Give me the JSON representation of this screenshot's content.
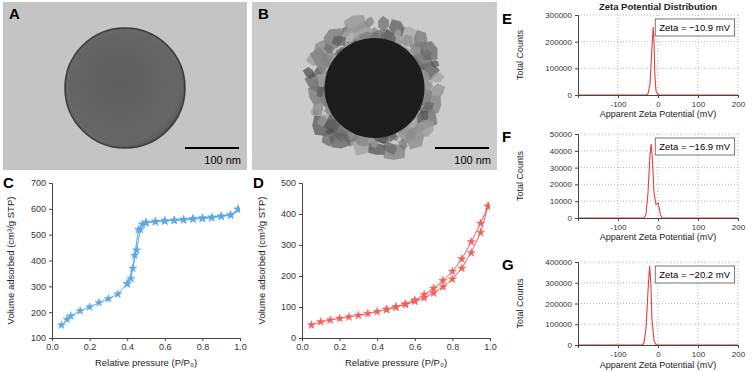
{
  "images": [
    {
      "panel": "A",
      "scale_bar": "100 nm"
    },
    {
      "panel": "B",
      "scale_bar": "100 nm"
    }
  ],
  "chart_data": [
    {
      "panel": "C",
      "type": "line",
      "x_label": "Relative pressure (P/P₀)",
      "y_label": "Volume adsorbed (cm³/g STP)",
      "xlim": [
        0,
        1
      ],
      "xticks": [
        {
          "value": 0,
          "label": "0.0"
        },
        0.2,
        0.4,
        0.6,
        0.8,
        {
          "value": 1,
          "label": "1.0"
        }
      ],
      "ylim": [
        100,
        700
      ],
      "yticks": [
        100,
        200,
        300,
        400,
        500,
        600,
        700
      ],
      "grid": false,
      "series": [
        {
          "color": "#5aa9e6",
          "marker": "star",
          "x": [
            0.05,
            0.08,
            0.1,
            0.15,
            0.2,
            0.25,
            0.3,
            0.35,
            0.4,
            0.43,
            0.45,
            0.47,
            0.5,
            0.55,
            0.6,
            0.65,
            0.7,
            0.75,
            0.8,
            0.85,
            0.9,
            0.95,
            0.99
          ],
          "values": [
            150,
            172,
            185,
            205,
            220,
            237,
            252,
            270,
            310,
            370,
            440,
            520,
            545,
            550,
            552,
            555,
            557,
            560,
            562,
            565,
            570,
            575,
            598
          ]
        },
        {
          "color": "#5aa9e6",
          "marker": "star",
          "x": [
            0.99,
            0.95,
            0.9,
            0.85,
            0.8,
            0.75,
            0.7,
            0.65,
            0.6,
            0.55,
            0.5,
            0.48,
            0.46,
            0.44,
            0.42,
            0.4
          ],
          "values": [
            598,
            577,
            572,
            568,
            565,
            562,
            559,
            556,
            554,
            551,
            548,
            540,
            520,
            420,
            330,
            310
          ]
        }
      ]
    },
    {
      "panel": "D",
      "type": "line",
      "x_label": "Relative pressure (P/P₀)",
      "y_label": "Volume adsorbed (cm³/g STP)",
      "xlim": [
        0,
        1
      ],
      "xticks": [
        {
          "value": 0,
          "label": "0.0"
        },
        0.2,
        0.4,
        0.6,
        0.8,
        {
          "value": 1,
          "label": "1.0"
        }
      ],
      "ylim": [
        0,
        500
      ],
      "yticks": [
        0,
        100,
        200,
        300,
        400,
        500
      ],
      "grid": false,
      "series": [
        {
          "color": "#f0605d",
          "marker": "star",
          "x": [
            0.05,
            0.1,
            0.15,
            0.2,
            0.25,
            0.3,
            0.35,
            0.4,
            0.45,
            0.5,
            0.55,
            0.6,
            0.65,
            0.7,
            0.75,
            0.8,
            0.85,
            0.9,
            0.95,
            0.99
          ],
          "values": [
            42,
            52,
            58,
            63,
            68,
            73,
            79,
            85,
            92,
            100,
            108,
            118,
            130,
            145,
            165,
            190,
            225,
            275,
            340,
            425
          ]
        },
        {
          "color": "#f0605d",
          "marker": "star",
          "x": [
            0.99,
            0.95,
            0.9,
            0.85,
            0.8,
            0.75,
            0.7,
            0.65,
            0.6,
            0.55,
            0.5,
            0.45
          ],
          "values": [
            425,
            370,
            310,
            255,
            215,
            185,
            160,
            140,
            122,
            110,
            100,
            92
          ]
        }
      ]
    },
    {
      "panel": "E",
      "title": "Zeta Potential Distribution",
      "type": "line",
      "x_label": "Apparent Zeta Potential (mV)",
      "y_label": "Total Counts",
      "annotation": "Zeta = −10.9 mV",
      "xlim": [
        -200,
        200
      ],
      "xticks": [
        -100,
        0,
        100,
        200
      ],
      "ylim": [
        0,
        300000
      ],
      "yticks": [
        0,
        100000,
        200000,
        300000
      ],
      "grid": true,
      "series": [
        {
          "color": "#e0403a",
          "x": [
            -200,
            -30,
            -25,
            -20,
            -15,
            -12,
            -10,
            -8,
            -5,
            0,
            5,
            200
          ],
          "values": [
            0,
            0,
            5000,
            40000,
            180000,
            255000,
            200000,
            80000,
            15000,
            2000,
            0,
            0
          ]
        }
      ]
    },
    {
      "panel": "F",
      "type": "line",
      "x_label": "Apparent Zeta Potential (mV)",
      "y_label": "Total Counts",
      "annotation": "Zeta = −16.9 mV",
      "xlim": [
        -200,
        200
      ],
      "xticks": [
        -100,
        0,
        100,
        200
      ],
      "ylim": [
        0,
        50000
      ],
      "yticks": [
        0,
        10000,
        20000,
        30000,
        40000,
        50000
      ],
      "grid": true,
      "series": [
        {
          "color": "#e0403a",
          "x": [
            -200,
            -35,
            -30,
            -25,
            -20,
            -17,
            -14,
            -10,
            -5,
            0,
            3,
            6,
            10,
            200
          ],
          "values": [
            0,
            0,
            2000,
            15000,
            38000,
            44000,
            35000,
            15000,
            8000,
            9000,
            6000,
            2000,
            0,
            0
          ]
        }
      ]
    },
    {
      "panel": "G",
      "type": "line",
      "x_label": "Apparent Zeta Potential (mV)",
      "y_label": "Total Counts",
      "annotation": "Zeta = −20.2 mV",
      "xlim": [
        -200,
        200
      ],
      "xticks": [
        -100,
        0,
        100,
        200
      ],
      "ylim": [
        0,
        400000
      ],
      "yticks": [
        0,
        100000,
        200000,
        300000,
        400000
      ],
      "grid": true,
      "series": [
        {
          "color": "#e0403a",
          "x": [
            -200,
            -40,
            -35,
            -30,
            -25,
            -21,
            -18,
            -15,
            -10,
            -5,
            0,
            200
          ],
          "values": [
            0,
            0,
            10000,
            80000,
            260000,
            380000,
            300000,
            120000,
            20000,
            2000,
            0,
            0
          ]
        }
      ]
    }
  ]
}
